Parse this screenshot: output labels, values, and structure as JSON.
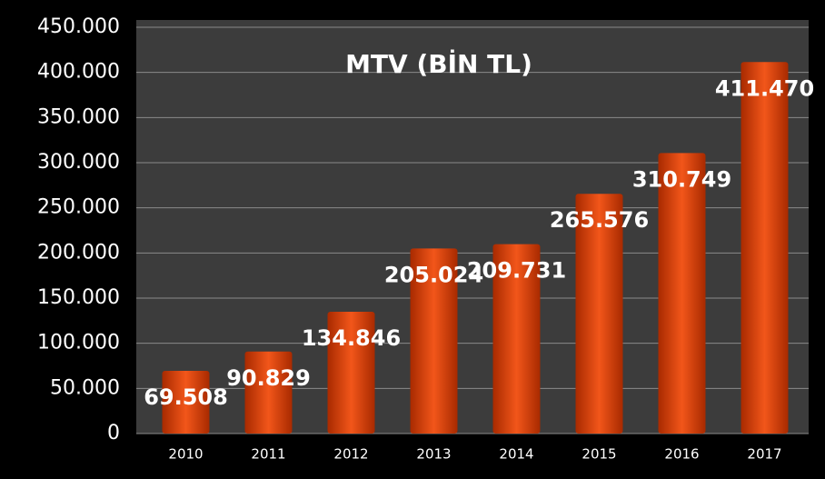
{
  "chart_data": {
    "type": "bar",
    "title": "MTV (BİN TL)",
    "categories": [
      "2010",
      "2011",
      "2012",
      "2013",
      "2014",
      "2015",
      "2016",
      "2017"
    ],
    "values": [
      69508,
      90829,
      134846,
      205024,
      209731,
      265576,
      310749,
      411470
    ],
    "value_labels": [
      "69.508",
      "90.829",
      "134.846",
      "205.024",
      "209.731",
      "265.576",
      "310.749",
      "411.470"
    ],
    "color": "#f2561a",
    "ylim": [
      0,
      450000
    ],
    "yticks": [
      0,
      {
        "value": 50000,
        "label": "50.000"
      },
      {
        "value": 100000,
        "label": "100.000"
      },
      {
        "value": 150000,
        "label": "150.000"
      },
      {
        "value": 200000,
        "label": "200.000"
      },
      {
        "value": 250000,
        "label": "250.000"
      },
      {
        "value": 300000,
        "label": "300.000"
      },
      {
        "value": 350000,
        "label": "350.000"
      },
      {
        "value": 400000,
        "label": "400.000"
      },
      {
        "value": 450000,
        "label": "450.000"
      }
    ],
    "grid": true
  }
}
